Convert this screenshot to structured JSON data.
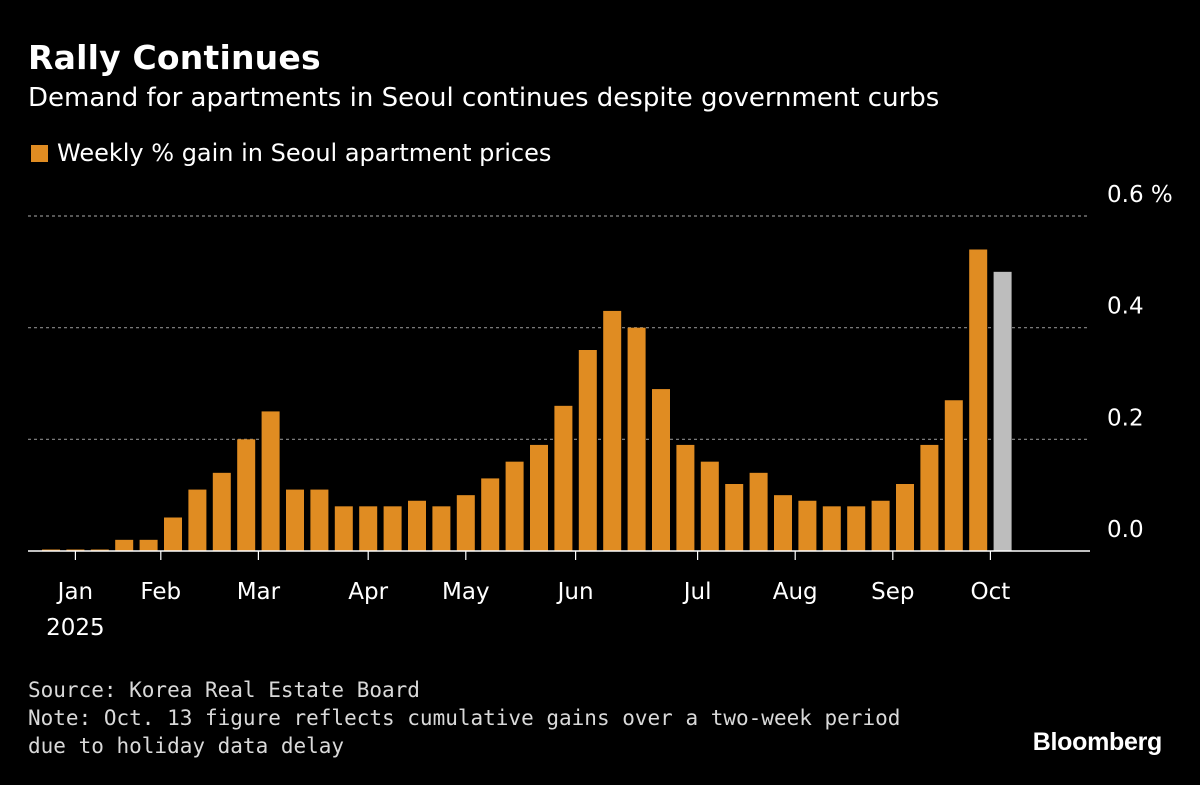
{
  "header": {
    "title": "Rally Continues",
    "subtitle": "Demand for apartments in Seoul continues despite government curbs"
  },
  "legend": {
    "label": "Weekly % gain in Seoul apartment prices"
  },
  "colors": {
    "bar": "#e08c22",
    "highlight_bar": "#bdbdbd",
    "grid": "#8a8a8a",
    "axis": "#ffffff",
    "text": "#ffffff"
  },
  "chart_data": {
    "type": "bar",
    "title": "Rally Continues",
    "ylim": [
      0,
      0.6
    ],
    "yticks": [
      {
        "value": 0.0,
        "label": "0.0"
      },
      {
        "value": 0.2,
        "label": "0.2"
      },
      {
        "value": 0.4,
        "label": "0.4"
      },
      {
        "value": 0.6,
        "label": "0.6 %"
      }
    ],
    "grid": true,
    "values": [
      0.0,
      0.0,
      0.0,
      0.02,
      0.02,
      0.06,
      0.11,
      0.14,
      0.2,
      0.25,
      0.11,
      0.11,
      0.08,
      0.08,
      0.08,
      0.09,
      0.08,
      0.1,
      0.13,
      0.16,
      0.19,
      0.26,
      0.36,
      0.43,
      0.4,
      0.29,
      0.19,
      0.16,
      0.12,
      0.14,
      0.1,
      0.09,
      0.08,
      0.08,
      0.09,
      0.12,
      0.19,
      0.27,
      0.54,
      0.5
    ],
    "highlight_index": 39,
    "xticks": [
      {
        "index": 1,
        "label": "Jan",
        "sublabel": "2025"
      },
      {
        "index": 4.5,
        "label": "Feb"
      },
      {
        "index": 8.5,
        "label": "Mar"
      },
      {
        "index": 13,
        "label": "Apr"
      },
      {
        "index": 17,
        "label": "May"
      },
      {
        "index": 21.5,
        "label": "Jun"
      },
      {
        "index": 26.5,
        "label": "Jul"
      },
      {
        "index": 30.5,
        "label": "Aug"
      },
      {
        "index": 34.5,
        "label": "Sep"
      },
      {
        "index": 38.5,
        "label": "Oct"
      }
    ]
  },
  "footer": {
    "source": "Source: Korea Real Estate Board",
    "note": "Note: Oct. 13 figure reflects cumulative gains over a two-week period due to holiday data delay",
    "brand": "Bloomberg"
  }
}
